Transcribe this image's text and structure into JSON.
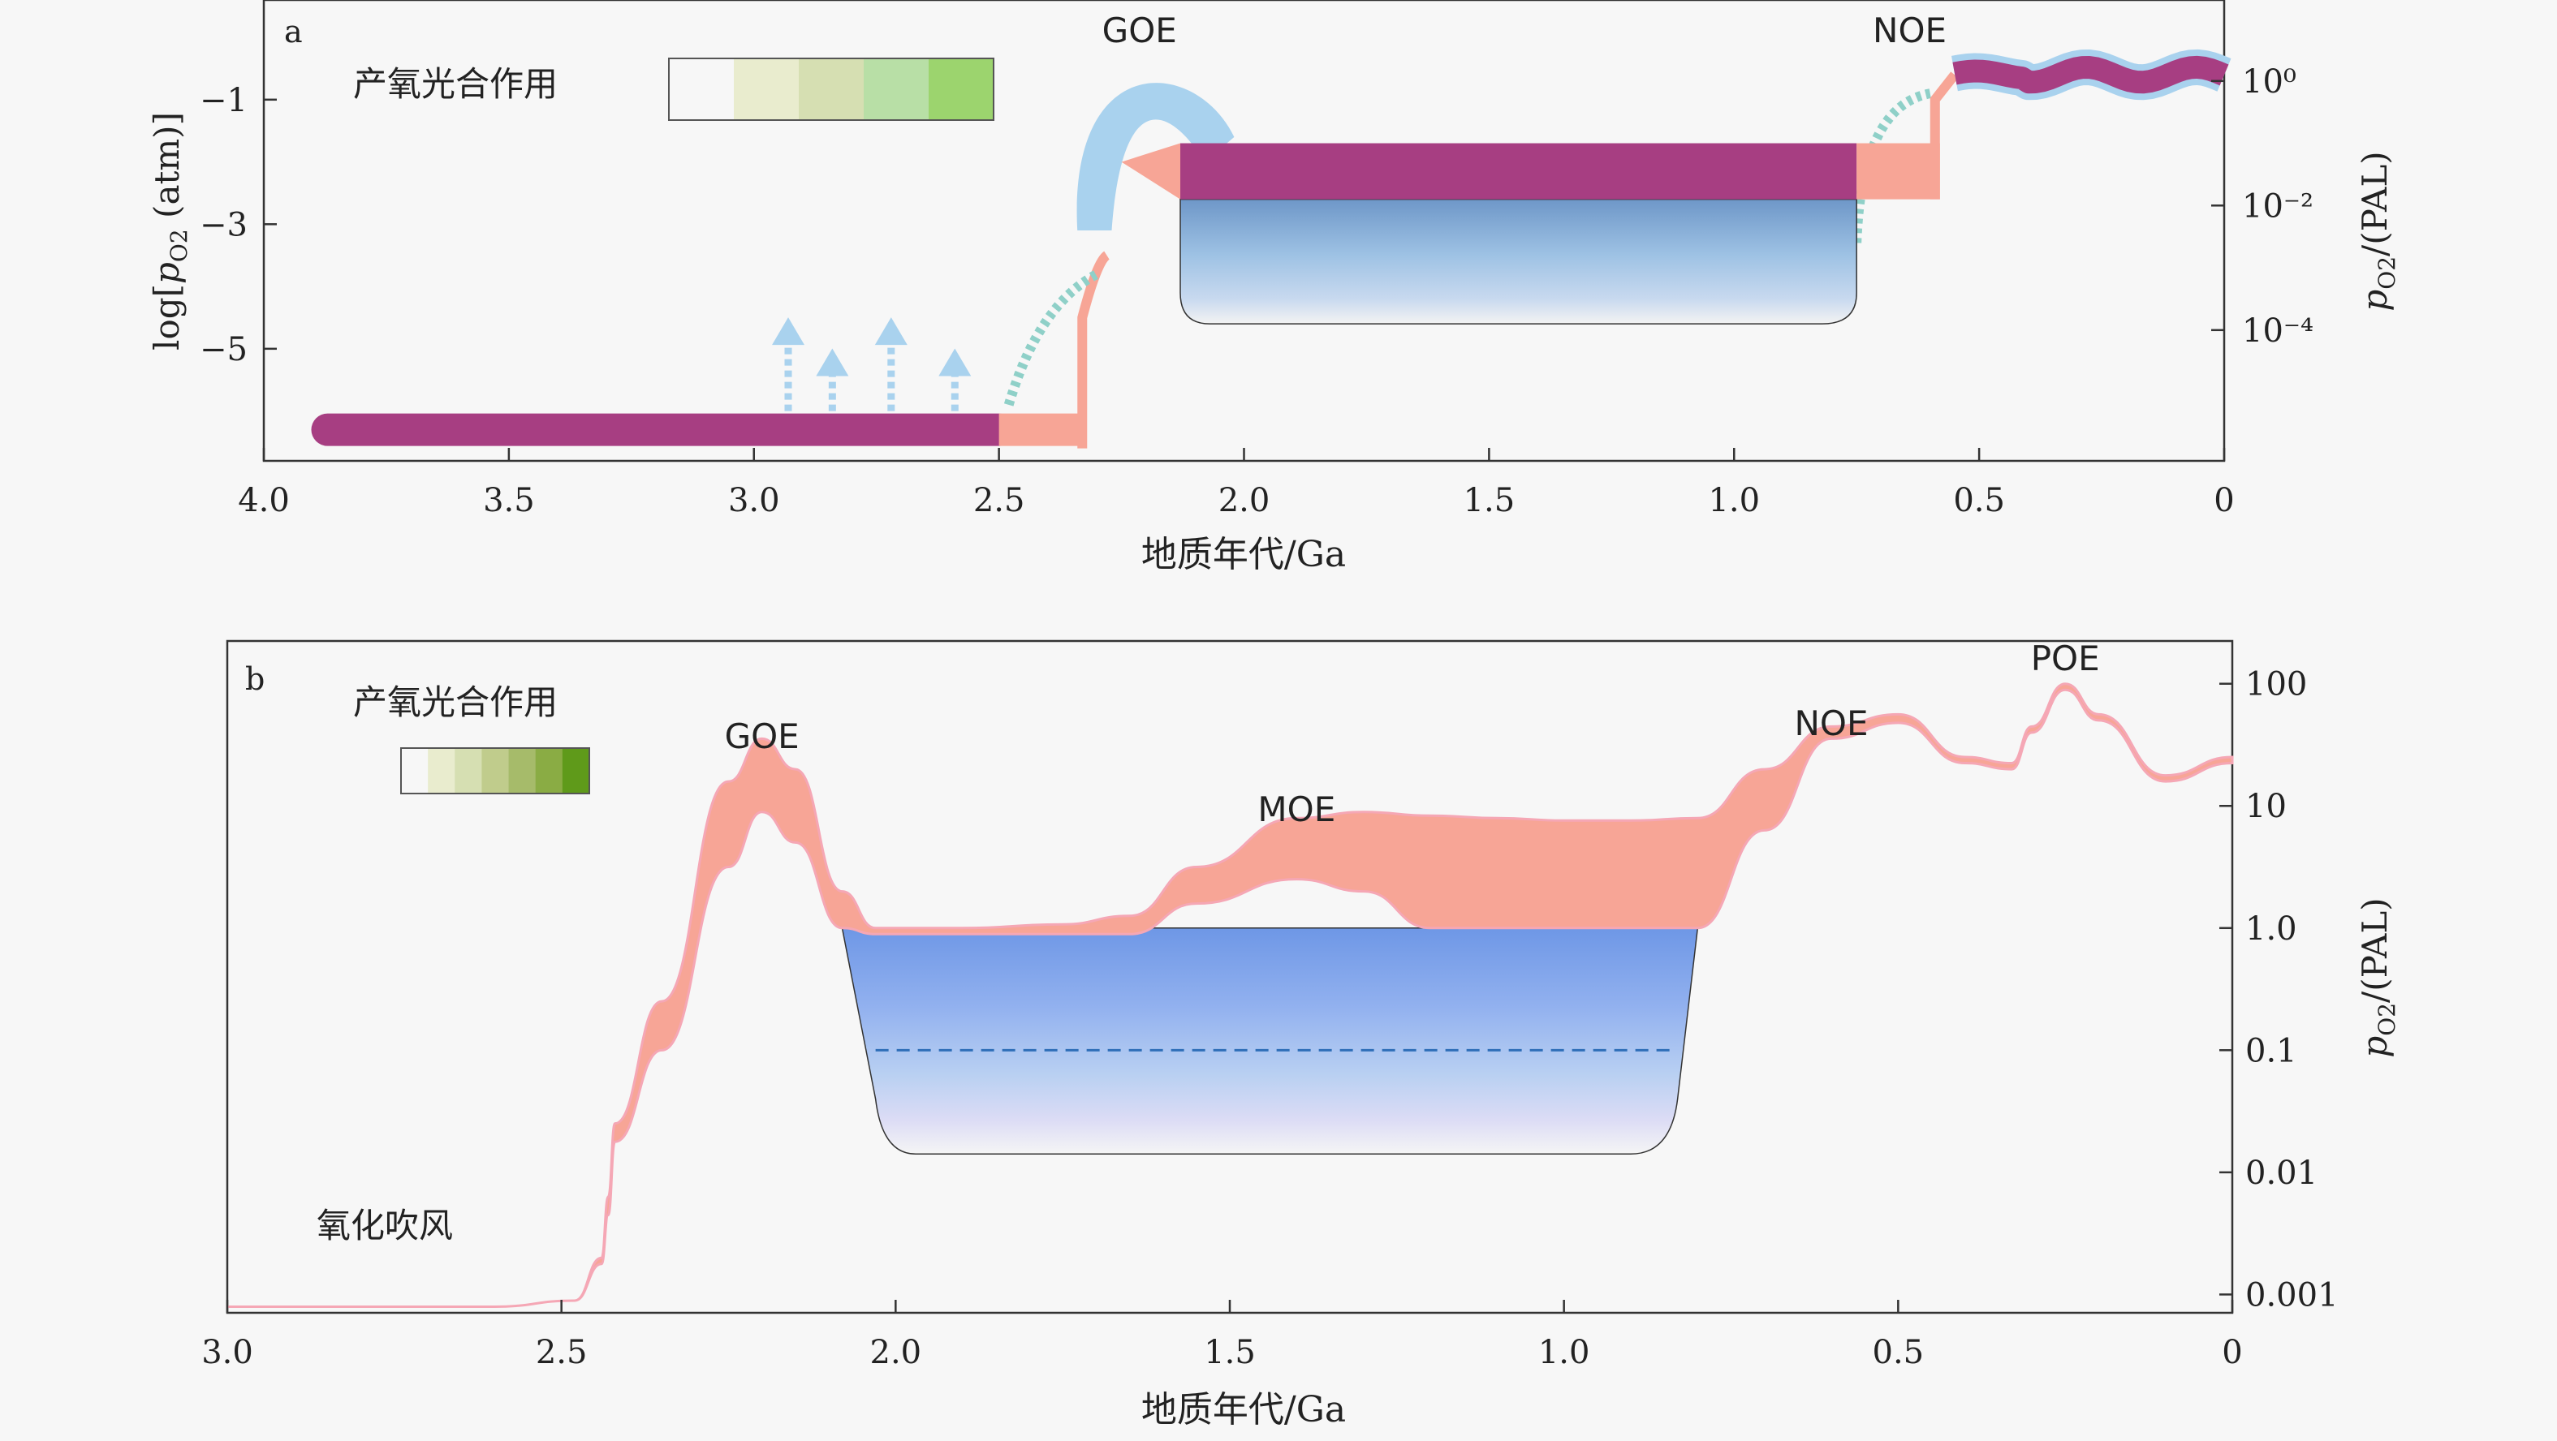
{
  "chart_data": [
    {
      "panel_label": "a",
      "type": "area",
      "xlabel": "地质年代/Ga",
      "ylabel_left": "log[pO2 (atm)]",
      "ylabel_right": "pO2/(PAL)",
      "x_ticks": [
        "4.0",
        "3.5",
        "3.0",
        "2.5",
        "2.0",
        "1.5",
        "1.0",
        "0.5",
        "0"
      ],
      "x_tick_values": [
        4.0,
        3.5,
        3.0,
        2.5,
        2.0,
        1.5,
        1.0,
        0.5,
        0.0
      ],
      "y_ticks_left": [
        "−1",
        "−3",
        "−5"
      ],
      "y_tick_values_left": [
        -1,
        -3,
        -5
      ],
      "y_ticks_right": [
        "10⁰",
        "10⁻²",
        "10⁻⁴"
      ],
      "y_tick_values_right": [
        -0.7,
        -2.7,
        -4.7
      ],
      "xlim": [
        4.0,
        0.0
      ],
      "ylim": [
        -6.8,
        0.6
      ],
      "events": [
        {
          "label": "GOE",
          "x": 2.2
        },
        {
          "label": "NOE",
          "x": 0.65
        }
      ],
      "legend_title": "产氧光合作用",
      "legend_colors": [
        "#f7f7f7",
        "#e9ecce",
        "#d6dfb2",
        "#b8dfa6",
        "#9cd46e"
      ],
      "purple_band": [
        {
          "x_start": 3.87,
          "x_end": 2.5,
          "log_po2": -6.3
        },
        {
          "x_start": 2.13,
          "x_end": 0.75,
          "log_po2_top": -1.7,
          "log_po2_bottom": -2.6
        },
        {
          "x_start": 0.55,
          "x_end": 0.0,
          "log_po2": -0.6
        }
      ],
      "blue_box": {
        "x_start": 2.13,
        "x_end": 0.75,
        "log_po2_top": -2.6,
        "log_po2_bottom": -4.6
      },
      "arrows_x": [
        2.93,
        2.84,
        2.72,
        2.59
      ],
      "colors": {
        "purple": "#a73e82",
        "salmon": "#f7a596",
        "sky": "#a9d2ee",
        "teal": "#8fd0c8"
      }
    },
    {
      "panel_label": "b",
      "type": "area",
      "xlabel": "地质年代/Ga",
      "ylabel_right": "pO2/(PAL)",
      "x_ticks": [
        "3.0",
        "2.5",
        "2.0",
        "1.5",
        "1.0",
        "0.5",
        "0"
      ],
      "x_tick_values": [
        3.0,
        2.5,
        2.0,
        1.5,
        1.0,
        0.5,
        0.0
      ],
      "y_ticks_right": [
        "100",
        "10",
        "1.0",
        "0.1",
        "0.01",
        "0.001"
      ],
      "y_tick_values_right": [
        2,
        1,
        0,
        -1,
        -2,
        -3
      ],
      "xlim": [
        3.0,
        0.0
      ],
      "ylim": [
        -3.15,
        2.35
      ],
      "events": [
        {
          "label": "GOE",
          "x": 2.2
        },
        {
          "label": "MOE",
          "x": 1.4
        },
        {
          "label": "NOE",
          "x": 0.6
        },
        {
          "label": "POE",
          "x": 0.25
        }
      ],
      "annotation": "氧化吹风",
      "legend_title": "产氧光合作用",
      "legend_colors": [
        "#f7f7f7",
        "#e9ecce",
        "#d6dfb2",
        "#c0cc8c",
        "#a6bb6a",
        "#8aac44",
        "#5f9a1a"
      ],
      "band_x": [
        3.0,
        2.9,
        2.6,
        2.48,
        2.44,
        2.43,
        2.42,
        2.35,
        2.25,
        2.2,
        2.15,
        2.08,
        2.03,
        1.9,
        1.75,
        1.65,
        1.55,
        1.4,
        1.3,
        1.2,
        1.1,
        1.0,
        0.9,
        0.8,
        0.7,
        0.6,
        0.5,
        0.4,
        0.33,
        0.3,
        0.25,
        0.2,
        0.1,
        0.0
      ],
      "band_upper_log_pal": [
        -3.1,
        -3.1,
        -3.1,
        -3.05,
        -2.7,
        -2.2,
        -1.6,
        -0.6,
        1.2,
        1.55,
        1.3,
        0.3,
        0.0,
        0.0,
        0.03,
        0.1,
        0.5,
        0.9,
        0.95,
        0.92,
        0.9,
        0.88,
        0.88,
        0.9,
        1.3,
        1.65,
        1.75,
        1.4,
        1.35,
        1.65,
        2.0,
        1.75,
        1.25,
        1.4
      ],
      "band_lower_log_pal": [
        -3.1,
        -3.1,
        -3.1,
        -3.05,
        -2.75,
        -2.35,
        -1.75,
        -1.0,
        0.5,
        0.95,
        0.7,
        0.0,
        -0.05,
        -0.05,
        -0.05,
        -0.05,
        0.2,
        0.4,
        0.3,
        0.0,
        0.0,
        0.0,
        0.0,
        0.0,
        0.8,
        1.55,
        1.68,
        1.35,
        1.3,
        1.6,
        1.95,
        1.7,
        1.2,
        1.35
      ],
      "blue_box": {
        "x_start": 2.08,
        "x_end": 0.8,
        "log_pal_top": 0.0,
        "log_pal_bottom": -1.85
      },
      "dashed_line_log_pal": -1.0,
      "colors": {
        "salmon": "#f7a596",
        "pink_line": "#f5a7b5",
        "blue_top": "#6e97e6",
        "dash": "#2f6fb8"
      }
    }
  ]
}
